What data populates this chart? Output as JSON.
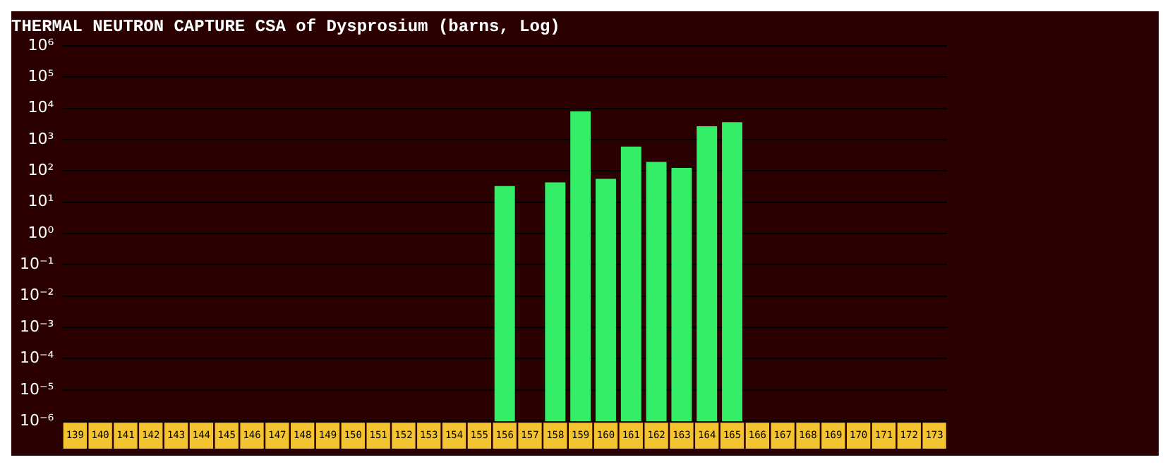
{
  "chart_data": {
    "type": "bar",
    "title": "THERMAL NEUTRON CAPTURE CSA of Dysprosium (barns, Log)",
    "categories": [
      "139",
      "140",
      "141",
      "142",
      "143",
      "144",
      "145",
      "146",
      "147",
      "148",
      "149",
      "150",
      "151",
      "152",
      "153",
      "154",
      "155",
      "156",
      "157",
      "158",
      "159",
      "160",
      "161",
      "162",
      "163",
      "164",
      "165",
      "166",
      "167",
      "168",
      "169",
      "170",
      "171",
      "172",
      "173"
    ],
    "values": [
      null,
      null,
      null,
      null,
      null,
      null,
      null,
      null,
      null,
      null,
      null,
      null,
      null,
      null,
      null,
      null,
      null,
      33,
      null,
      43,
      8000,
      56,
      600,
      194,
      124,
      2650,
      3600,
      null,
      null,
      null,
      null,
      null,
      null,
      null,
      null
    ],
    "color": "#33ee66",
    "log": "y",
    "ylim": [
      1e-06,
      1000000
    ],
    "yticks": [
      {
        "value": 1e-06,
        "label": "10⁻⁶"
      },
      {
        "value": 1e-05,
        "label": "10⁻⁵"
      },
      {
        "value": 0.0001,
        "label": "10⁻⁴"
      },
      {
        "value": 0.001,
        "label": "10⁻³"
      },
      {
        "value": 0.01,
        "label": "10⁻²"
      },
      {
        "value": 0.1,
        "label": "10⁻¹"
      },
      {
        "value": 1,
        "label": "10⁰"
      },
      {
        "value": 10,
        "label": "10¹"
      },
      {
        "value": 100,
        "label": "10²"
      },
      {
        "value": 1000,
        "label": "10³"
      },
      {
        "value": 10000,
        "label": "10⁴"
      },
      {
        "value": 100000,
        "label": "10⁵"
      },
      {
        "value": 1000000,
        "label": "10⁶"
      }
    ],
    "grid": "y",
    "legend": false
  }
}
